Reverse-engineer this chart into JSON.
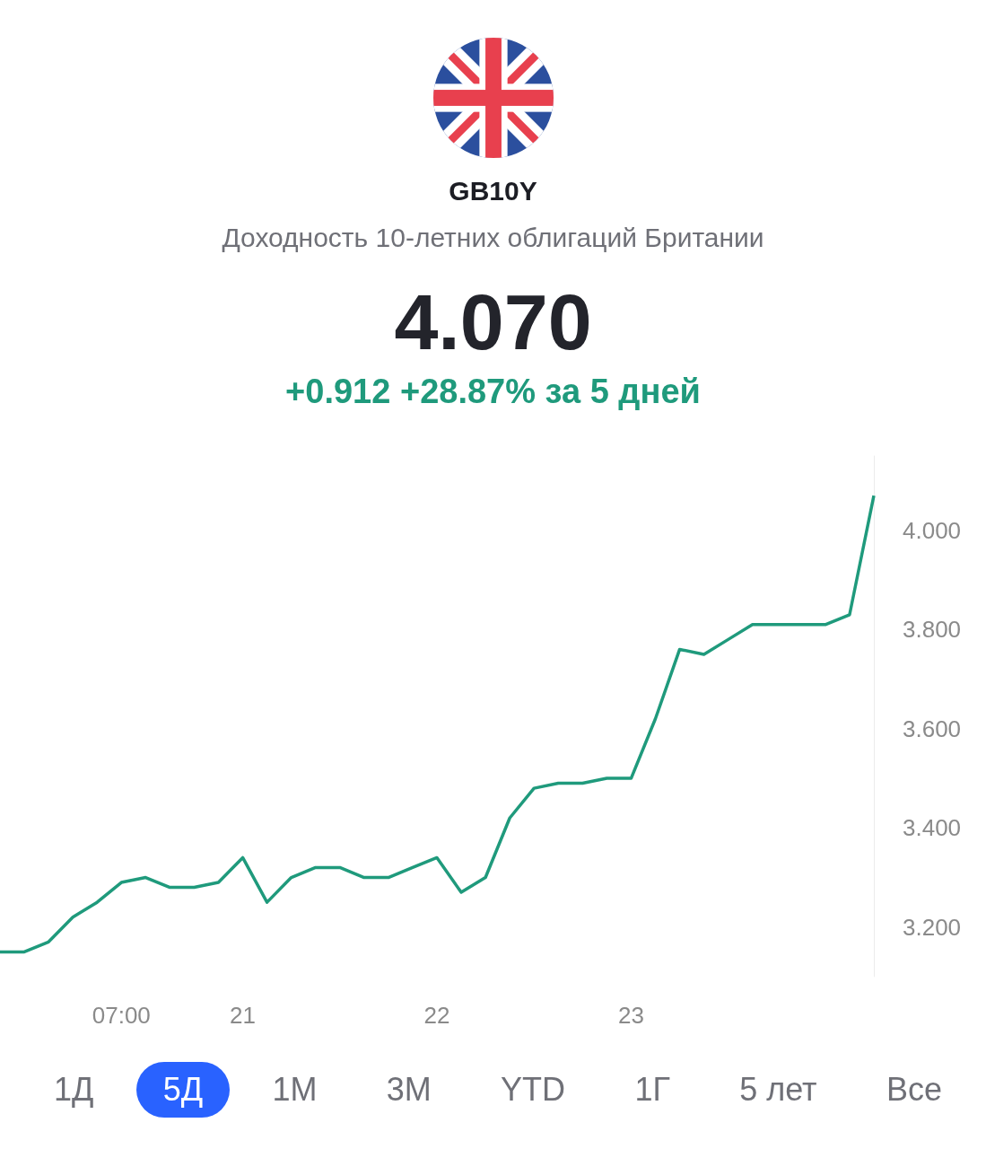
{
  "chart_data": {
    "type": "line",
    "title": "GB10Y",
    "subtitle": "Доходность 10-летних облигаций Британии",
    "annotations": [
      "4.070",
      "+0.912 +28.87% за 5 дней",
      "1Д",
      "5Д",
      "1М",
      "3М",
      "YTD",
      "1Г",
      "5 лет",
      "Все"
    ],
    "categories": [
      null,
      null,
      null,
      null,
      null,
      "07:00",
      null,
      null,
      null,
      null,
      "21",
      null,
      null,
      null,
      null,
      null,
      null,
      null,
      "22",
      null,
      null,
      null,
      null,
      null,
      null,
      null,
      "23",
      null,
      null,
      null,
      null,
      null,
      null,
      null,
      null,
      null,
      null
    ],
    "series": [
      {
        "color": "#1f9a7c",
        "values": [
          3.15,
          3.15,
          3.17,
          3.22,
          3.25,
          3.29,
          3.3,
          3.28,
          3.28,
          3.29,
          3.34,
          3.25,
          3.3,
          3.32,
          3.32,
          3.3,
          3.3,
          3.32,
          3.34,
          3.27,
          3.3,
          3.42,
          3.48,
          3.49,
          3.49,
          3.5,
          3.5,
          3.62,
          3.76,
          3.75,
          3.78,
          3.81,
          3.81,
          3.81,
          3.81,
          3.83,
          4.07
        ]
      }
    ],
    "ylim": [
      3.1,
      4.15
    ],
    "yticks": [
      {
        "value": 3.2,
        "label": "3.200"
      },
      {
        "value": 3.4,
        "label": "3.400"
      },
      {
        "value": 3.6,
        "label": "3.600"
      },
      {
        "value": 3.8,
        "label": "3.800"
      },
      {
        "value": 4.0,
        "label": "4.000"
      }
    ],
    "grid": false,
    "marker": "none",
    "line_style": "solid"
  }
}
